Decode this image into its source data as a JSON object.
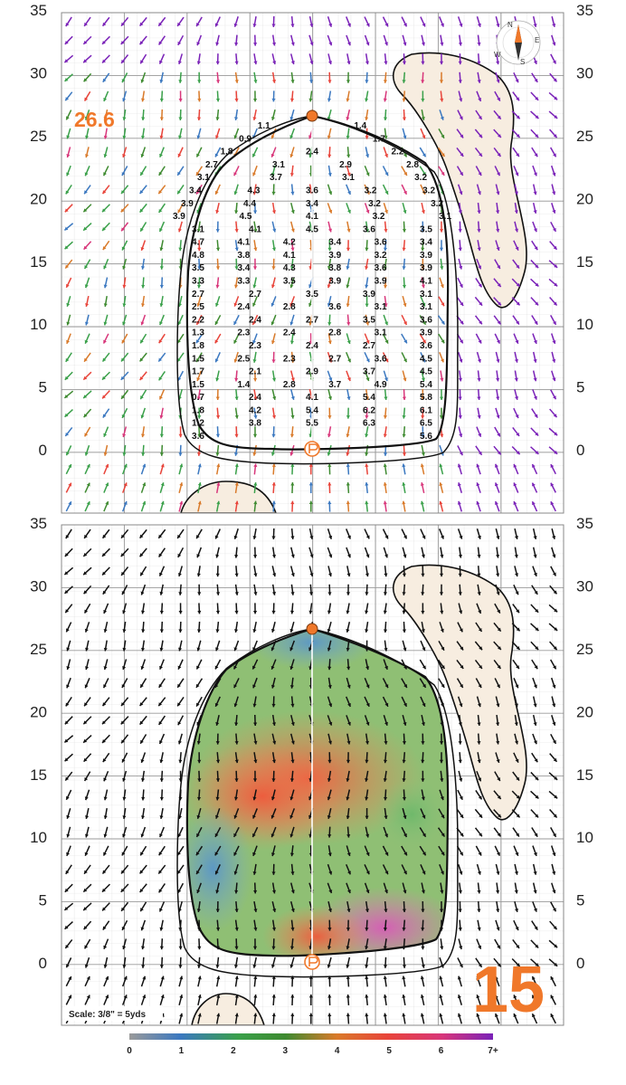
{
  "green": {
    "hole_number": "15",
    "depth_label": "26.6",
    "scale_label": "Scale: 3/8\" = 5yds",
    "y_axis_ticks": [
      "0",
      "5",
      "10",
      "15",
      "20",
      "25",
      "30",
      "35"
    ],
    "legend_ticks": [
      "0",
      "1",
      "2",
      "3",
      "4",
      "5",
      "6",
      "7+"
    ],
    "compass_letters": {
      "n": "N",
      "e": "E",
      "s": "S",
      "w": "W"
    },
    "colors": {
      "accent_orange": "#f0782a",
      "sand": "#f7ede0",
      "legend_stops": [
        "#9a9a9a",
        "#3b78c0",
        "#3aa04a",
        "#3e8a30",
        "#d97a2a",
        "#e8443a",
        "#d8367a",
        "#7a22b8"
      ]
    },
    "icons": {
      "pin": "pin-flag-icon",
      "hole_marker": "hole-marker-icon",
      "compass": "compass-rose-icon"
    },
    "slope_values": [
      [
        "1.1",
        "1.4"
      ],
      [
        "0.9",
        "1.7"
      ],
      [
        "1.8",
        "2.4",
        "2.2"
      ],
      [
        "2.7",
        "3.1",
        "2.9",
        "2.8"
      ],
      [
        "3.1",
        "3.7",
        "3.1",
        "3.2"
      ],
      [
        "3.4",
        "4.3",
        "3.6",
        "3.2",
        "3.2"
      ],
      [
        "3.9",
        "4.4",
        "3.4",
        "3.2",
        "3.2"
      ],
      [
        "3.9",
        "4.5",
        "4.1",
        "3.2",
        "3.1"
      ],
      [
        "3.1",
        "4.1",
        "4.5",
        "3.6",
        "3.5"
      ],
      [
        "4.7",
        "4.1",
        "4.2",
        "3.4",
        "3.6",
        "3.4"
      ],
      [
        "4.8",
        "3.8",
        "4.1",
        "3.9",
        "3.2",
        "3.9"
      ],
      [
        "3.5",
        "3.4",
        "4.3",
        "3.8",
        "3.6",
        "3.9"
      ],
      [
        "3.3",
        "3.3",
        "3.5",
        "3.9",
        "3.9",
        "4.1"
      ],
      [
        "2.7",
        "2.7",
        "3.5",
        "3.9",
        "3.1"
      ],
      [
        "2.5",
        "2.4",
        "2.8",
        "3.6",
        "3.1",
        "3.1"
      ],
      [
        "2.2",
        "2.4",
        "2.7",
        "3.5",
        "3.6"
      ],
      [
        "1.3",
        "2.3",
        "2.4",
        "2.8",
        "3.1",
        "3.9"
      ],
      [
        "1.8",
        "2.3",
        "2.4",
        "2.7",
        "3.6"
      ],
      [
        "1.5",
        "2.5",
        "2.3",
        "2.7",
        "3.6",
        "4.5"
      ],
      [
        "1.7",
        "2.1",
        "2.9",
        "3.7",
        "4.5"
      ],
      [
        "1.5",
        "1.4",
        "2.8",
        "3.7",
        "4.9",
        "5.4"
      ],
      [
        "0.7",
        "2.4",
        "4.1",
        "5.4",
        "5.8"
      ],
      [
        "1.8",
        "4.2",
        "5.4",
        "6.2",
        "6.1"
      ],
      [
        "1.2",
        "3.8",
        "5.5",
        "6.3",
        "6.5"
      ],
      [
        "3.6",
        "5.6"
      ]
    ]
  }
}
